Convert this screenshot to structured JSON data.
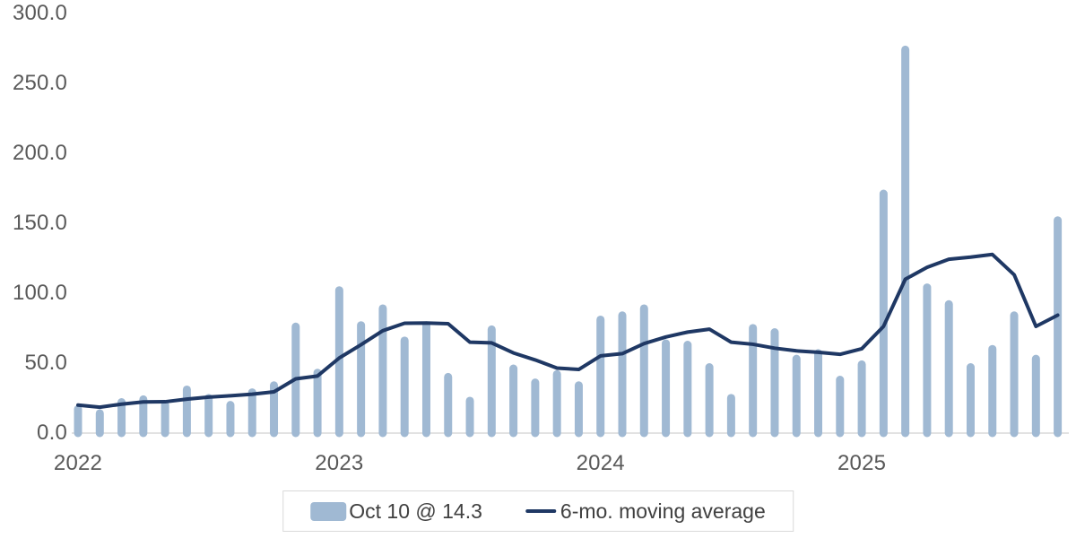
{
  "chart_data": {
    "type": "bar",
    "title": "",
    "xlabel": "",
    "ylabel": "",
    "ylim": [
      0,
      300
    ],
    "grid": "baseline-only",
    "legend_position": "bottom-center",
    "yticks": {
      "labels": [
        "300.0",
        "250.0",
        "200.0",
        "150.0",
        "100.0",
        "50.0",
        "0.0"
      ],
      "values": [
        300,
        250,
        200,
        150,
        100,
        50,
        0
      ]
    },
    "xticks": {
      "labels": [
        "2022",
        "2023",
        "2024",
        "2025"
      ],
      "month_index": [
        0,
        12,
        24,
        36
      ]
    },
    "categories": [
      "2022-01",
      "2022-02",
      "2022-03",
      "2022-04",
      "2022-05",
      "2022-06",
      "2022-07",
      "2022-08",
      "2022-09",
      "2022-10",
      "2022-11",
      "2022-12",
      "2023-01",
      "2023-02",
      "2023-03",
      "2023-04",
      "2023-05",
      "2023-06",
      "2023-07",
      "2023-08",
      "2023-09",
      "2023-10",
      "2023-11",
      "2023-12",
      "2024-01",
      "2024-02",
      "2024-03",
      "2024-04",
      "2024-05",
      "2024-06",
      "2024-07",
      "2024-08",
      "2024-09",
      "2024-10",
      "2024-11",
      "2024-12",
      "2025-01",
      "2025-02",
      "2025-03",
      "2025-04",
      "2025-05",
      "2025-06",
      "2025-07",
      "2025-08",
      "2025-09",
      "2025-10"
    ],
    "series": [
      {
        "name": "Oct 10 @ 14.3",
        "type": "bar",
        "values": [
          20,
          17,
          25,
          27,
          23,
          34,
          28,
          23,
          32,
          37,
          79,
          46,
          105,
          80,
          92,
          69,
          80,
          43,
          26,
          77,
          49,
          39,
          45,
          37,
          84,
          87,
          92,
          67,
          66,
          50,
          28,
          78,
          75,
          56,
          60,
          41,
          52,
          174,
          277,
          107,
          95,
          50,
          63,
          87,
          56,
          155
        ]
      },
      {
        "name": "6-mo. moving average",
        "type": "line",
        "values": [
          20.0,
          18.5,
          20.7,
          22.3,
          22.4,
          24.3,
          25.7,
          26.7,
          27.8,
          29.5,
          38.8,
          40.8,
          53.7,
          63.2,
          73.2,
          78.5,
          78.7,
          78.2,
          65.0,
          64.5,
          57.3,
          52.3,
          46.5,
          45.5,
          55.2,
          56.8,
          64.0,
          68.7,
          72.2,
          74.3,
          65.0,
          63.5,
          60.7,
          58.8,
          57.8,
          56.3,
          60.3,
          76.3,
          110.0,
          118.5,
          124.3,
          125.8,
          127.7,
          113.2,
          76.3,
          84.3
        ]
      }
    ]
  },
  "legend": {
    "bar_label": "Oct 10 @ 14.3",
    "line_label": "6-mo. moving average"
  },
  "colors": {
    "bar": "#A0B9D3",
    "line": "#1F3864",
    "axis_text": "#595959",
    "legend_text": "#404040",
    "baseline": "#D9D9D9",
    "legend_border": "#D9D9D9",
    "background": "#FFFFFF"
  }
}
